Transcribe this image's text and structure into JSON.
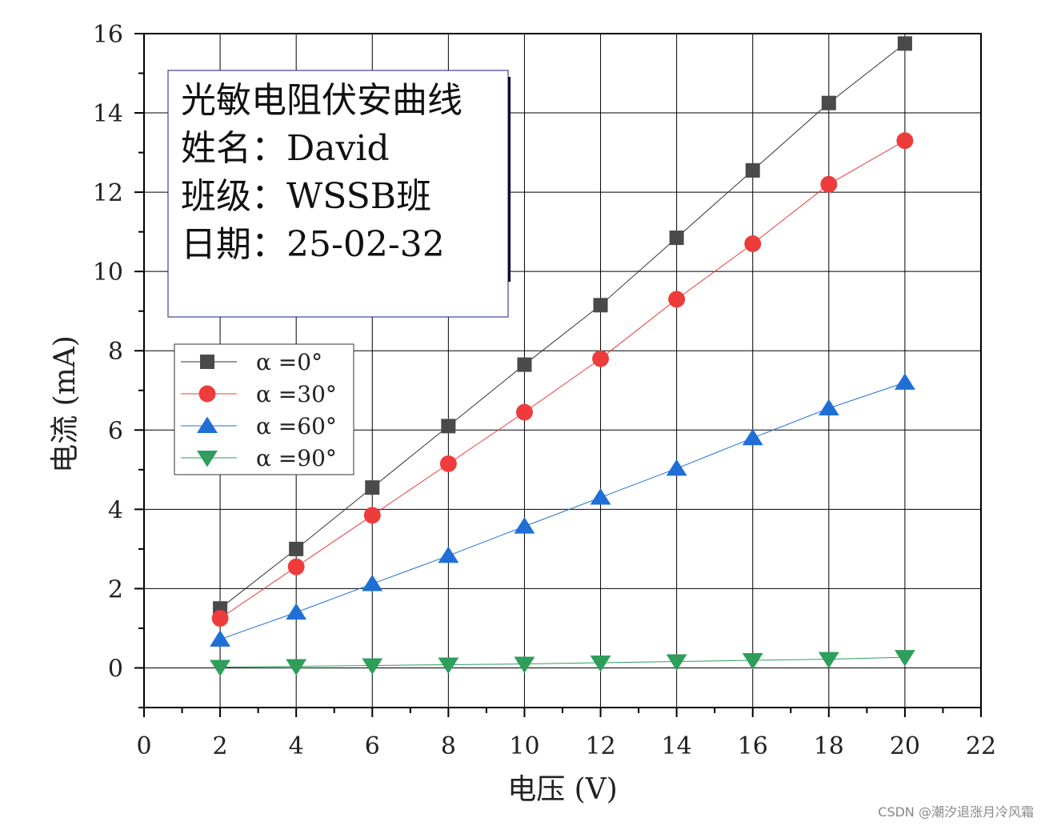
{
  "chart_data": {
    "type": "line",
    "title": "",
    "xlabel": "电压 (V)",
    "ylabel": "电流 (mA)",
    "xlim": [
      0,
      22
    ],
    "ylim": [
      -1,
      16
    ],
    "xticks": [
      0,
      2,
      4,
      6,
      8,
      10,
      12,
      14,
      16,
      18,
      20,
      22
    ],
    "yticks": [
      0,
      2,
      4,
      6,
      8,
      10,
      12,
      14,
      16
    ],
    "grid": true,
    "legend_position": "upper-left",
    "x": [
      2,
      4,
      6,
      8,
      10,
      12,
      14,
      16,
      18,
      20
    ],
    "series": [
      {
        "name": "α =0°",
        "marker": "square",
        "color": "#4a4a4a",
        "line_color": "#333333",
        "values": [
          1.5,
          3.0,
          4.55,
          6.1,
          7.65,
          9.15,
          10.85,
          12.55,
          14.25,
          15.75
        ]
      },
      {
        "name": "α =30°",
        "marker": "circle",
        "color": "#ee3b3b",
        "line_color": "#ee3b3b",
        "values": [
          1.25,
          2.55,
          3.85,
          5.15,
          6.45,
          7.8,
          9.3,
          10.7,
          12.2,
          13.3
        ]
      },
      {
        "name": "α =60°",
        "marker": "triangle-up",
        "color": "#1f6fd6",
        "line_color": "#1f6fd6",
        "values": [
          0.72,
          1.4,
          2.12,
          2.83,
          3.57,
          4.3,
          5.03,
          5.8,
          6.55,
          7.2
        ]
      },
      {
        "name": "α =90°",
        "marker": "triangle-down",
        "color": "#2e9e5b",
        "line_color": "#2e9e5b",
        "values": [
          0.02,
          0.04,
          0.06,
          0.08,
          0.1,
          0.13,
          0.16,
          0.19,
          0.22,
          0.27
        ]
      }
    ],
    "annotation_lines": [
      "光敏电阻伏安曲线",
      "姓名：David",
      "班级：WSSB班",
      "日期：25-02-32"
    ]
  },
  "watermark": "CSDN @潮汐退涨月冷风霜"
}
